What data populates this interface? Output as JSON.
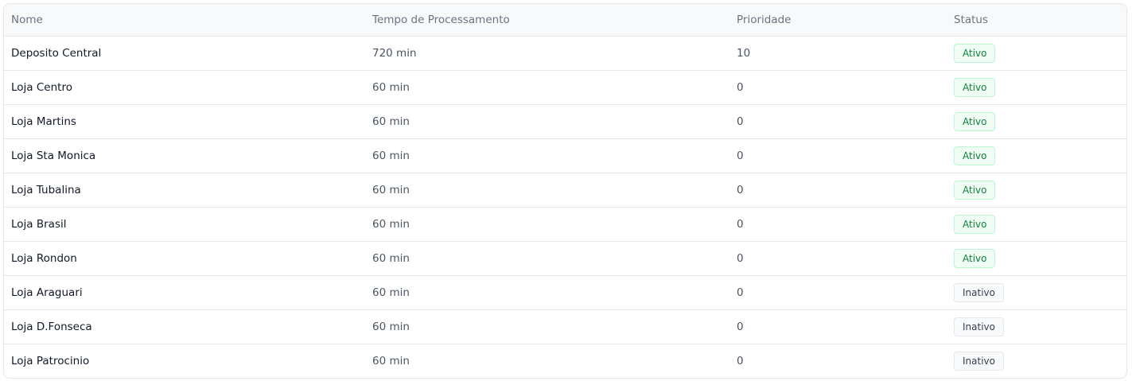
{
  "table": {
    "headers": [
      "Nome",
      "Tempo de Processamento",
      "Prioridade",
      "Status"
    ],
    "rows": [
      {
        "nome": "Deposito Central",
        "tempo": "720 min",
        "prioridade": "10",
        "status": "Ativo"
      },
      {
        "nome": "Loja Centro",
        "tempo": "60 min",
        "prioridade": "0",
        "status": "Ativo"
      },
      {
        "nome": "Loja Martins",
        "tempo": "60 min",
        "prioridade": "0",
        "status": "Ativo"
      },
      {
        "nome": "Loja Sta Monica",
        "tempo": "60 min",
        "prioridade": "0",
        "status": "Ativo"
      },
      {
        "nome": "Loja Tubalina",
        "tempo": "60 min",
        "prioridade": "0",
        "status": "Ativo"
      },
      {
        "nome": "Loja Brasil",
        "tempo": "60 min",
        "prioridade": "0",
        "status": "Ativo"
      },
      {
        "nome": "Loja Rondon",
        "tempo": "60 min",
        "prioridade": "0",
        "status": "Ativo"
      },
      {
        "nome": "Loja Araguari",
        "tempo": "60 min",
        "prioridade": "0",
        "status": "Inativo"
      },
      {
        "nome": "Loja D.Fonseca",
        "tempo": "60 min",
        "prioridade": "0",
        "status": "Inativo"
      },
      {
        "nome": "Loja Patrocinio",
        "tempo": "60 min",
        "prioridade": "0",
        "status": "Inativo"
      }
    ]
  },
  "colors": {
    "active_text": "#15803d",
    "active_bg": "#f0fdf4",
    "inactive_text": "#374151",
    "inactive_bg": "#f9fafb"
  }
}
